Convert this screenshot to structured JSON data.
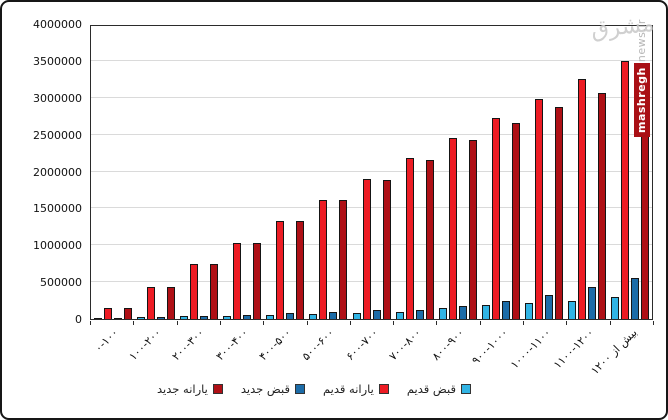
{
  "frame": {
    "bg": "#ffffff",
    "border_color": "#161616"
  },
  "watermark": {
    "logo_text": "مشرق",
    "brand": "mashregh",
    "site": "news.ir",
    "brand_bg": "#a90f14",
    "brand_fg": "#ffffff",
    "site_fg": "#b8b8b8",
    "logo_fg": "#cbcbcb"
  },
  "chart_data": {
    "type": "bar",
    "title": "",
    "categories": [
      "۰-۱۰۰",
      "۱۰۰-۲۰۰",
      "۲۰۰-۳۰۰",
      "۳۰۰-۴۰۰",
      "۴۰۰-۵۰۰",
      "۵۰۰-۶۰۰",
      "۶۰۰-۷۰۰",
      "۷۰۰-۸۰۰",
      "۸۰۰-۹۰۰",
      "۹۰۰-۱۰۰۰",
      "۱۰۰۰-۱۱۰۰",
      "۱۱۰۰-۱۲۰۰",
      "بیش از ۱۲۰۰"
    ],
    "series": [
      {
        "name": "قبض قدیم",
        "color": "#31b4e4",
        "values": [
          15000,
          25000,
          35000,
          45000,
          55000,
          70000,
          85000,
          100000,
          145000,
          185000,
          220000,
          250000,
          300000
        ]
      },
      {
        "name": "یارانه قدیم",
        "color": "#ed1c24",
        "values": [
          150000,
          435000,
          745000,
          1030000,
          1330000,
          1620000,
          1895000,
          2180000,
          2460000,
          2720000,
          2990000,
          3250000,
          3500000
        ]
      },
      {
        "name": "قبض جدید",
        "color": "#1c6ca8",
        "values": [
          18000,
          30000,
          45000,
          60000,
          78000,
          95000,
          118000,
          122000,
          178000,
          240000,
          320000,
          440000,
          560000
        ]
      },
      {
        "name": "یارانه جدید",
        "color": "#af1016",
        "values": [
          150000,
          435000,
          745000,
          1030000,
          1325000,
          1615000,
          1890000,
          2160000,
          2430000,
          2660000,
          2870000,
          3060000,
          3200000
        ]
      }
    ],
    "ylim": [
      0,
      4000000
    ],
    "ytick_step": 500000,
    "ytick_labels": [
      "0",
      "500000",
      "1000000",
      "1500000",
      "2000000",
      "2500000",
      "3000000",
      "3500000",
      "4000000"
    ],
    "grid": true,
    "gridline_color": "#dadada",
    "legend_position": "bottom",
    "legend_items_left_to_right": [
      "یارانه جدید",
      "قبض جدید",
      "یارانه قدیم",
      "قبض قدیم"
    ]
  }
}
